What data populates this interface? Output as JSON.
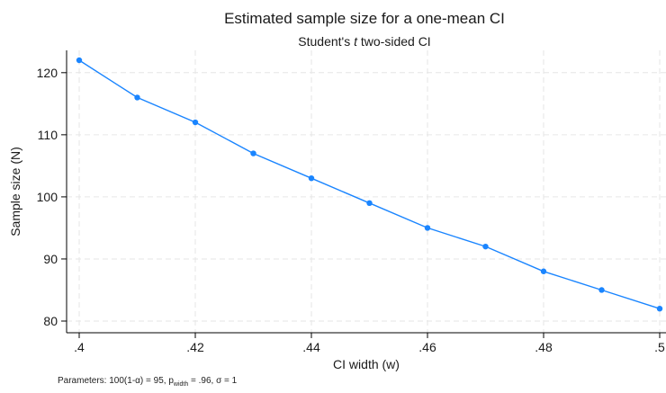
{
  "chart_data": {
    "type": "line",
    "title": "Estimated sample size for a one-mean CI",
    "subtitle": {
      "prefix": "Student's ",
      "italic": "t",
      "suffix": " two-sided CI"
    },
    "xlabel": "CI width (w)",
    "ylabel": "Sample size (N)",
    "xlim": [
      0.4,
      0.5
    ],
    "ylim": [
      80,
      122
    ],
    "x_ticks": [
      0.4,
      0.42,
      0.44,
      0.46,
      0.48,
      0.5
    ],
    "x_tick_labels": [
      ".4",
      ".42",
      ".44",
      ".46",
      ".48",
      ".5"
    ],
    "y_ticks": [
      80,
      90,
      100,
      110,
      120
    ],
    "y_tick_labels": [
      "80",
      "90",
      "100",
      "110",
      "120"
    ],
    "grid": true,
    "color": "#1a85ff",
    "x": [
      0.4,
      0.41,
      0.42,
      0.43,
      0.44,
      0.45,
      0.46,
      0.47,
      0.48,
      0.49,
      0.5
    ],
    "values": [
      122,
      116,
      112,
      107,
      103,
      99,
      95,
      92,
      88,
      85,
      82
    ]
  },
  "note": {
    "prefix": "Parameters: 100(1-α) = 95, p",
    "subscript": "width",
    "suffix": " = .96, σ = 1"
  }
}
